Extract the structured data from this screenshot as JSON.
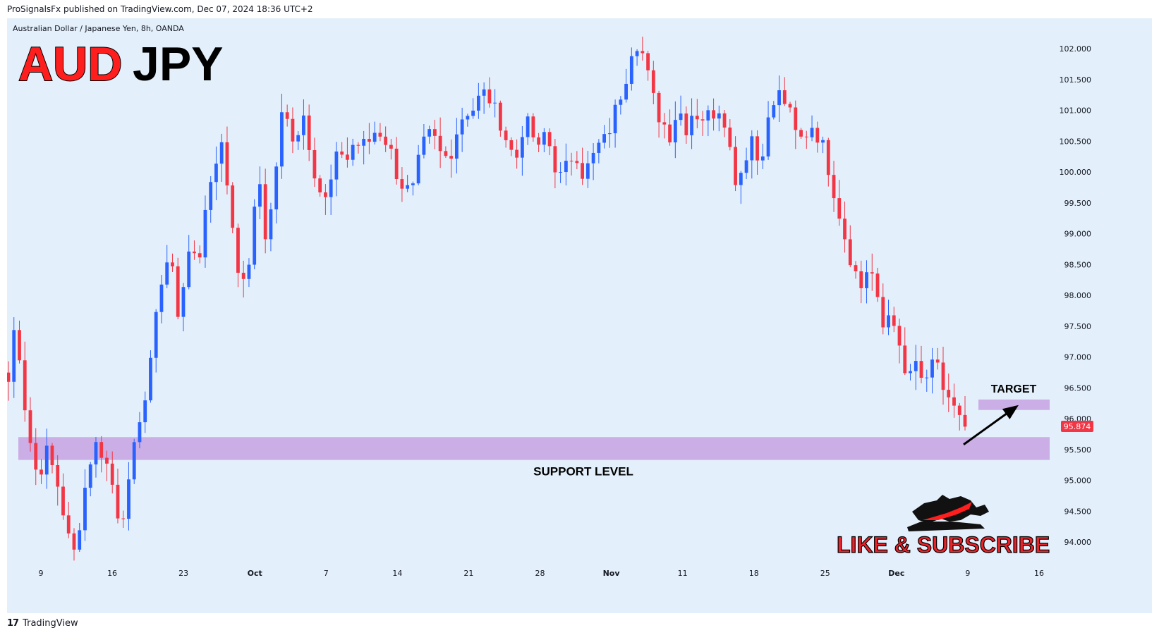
{
  "header": {
    "published_by": "ProSignalsFx published on TradingView.com, Dec 07, 2024 18:36 UTC+2"
  },
  "footer": {
    "brand": "TradingView",
    "logo_glyph": "17"
  },
  "colors": {
    "background": "#e3effa",
    "up": "#2962ff",
    "down": "#f23645",
    "zone": "#c9a6e3",
    "title_red": "#ff1e1e",
    "subscribe_red": "#e8232a"
  },
  "chart_data": {
    "type": "candlestick",
    "symbol_line": "Australian Dollar / Japanese Yen, 8h, OANDA",
    "title": "AUDJPY",
    "title_parts": [
      "AUD",
      "JPY"
    ],
    "ylim": [
      93.5,
      102.5
    ],
    "y_ticks": [
      "102.000",
      "101.500",
      "101.000",
      "100.500",
      "100.000",
      "99.500",
      "99.000",
      "98.500",
      "98.000",
      "97.500",
      "97.000",
      "96.500",
      "96.000",
      "95.500",
      "95.000",
      "94.500",
      "94.000"
    ],
    "x_ticks": [
      "9",
      "16",
      "23",
      "Oct",
      "7",
      "14",
      "21",
      "28",
      "Nov",
      "11",
      "18",
      "25",
      "Dec",
      "9",
      "16"
    ],
    "last_price": "95.874",
    "annotations": {
      "support_label": "SUPPORT LEVEL",
      "support_zone": [
        95.33,
        95.7
      ],
      "target_label": "TARGET",
      "target_zone": [
        96.14,
        96.31
      ],
      "arrow_from_price": 95.58,
      "arrow_to_price": 96.22
    },
    "branding": {
      "cta": "LIKE & SUBSCRIBE"
    },
    "key_points": [
      96.6,
      97.7,
      96.4,
      95.6,
      95.0,
      95.5,
      95.2,
      94.8,
      94.1,
      93.8,
      94.6,
      95.3,
      95.6,
      95.4,
      95.0,
      94.4,
      94.6,
      95.4,
      96.2,
      96.4,
      97.8,
      98.3,
      98.7,
      97.7,
      98.4,
      98.7,
      98.7,
      99.6,
      100.2,
      100.4,
      99.6,
      98.6,
      98.1,
      98.8,
      100.0,
      98.9,
      99.6,
      100.9,
      100.8,
      100.5,
      101.0,
      100.4,
      99.8,
      99.5,
      99.9,
      100.4,
      100.2,
      100.5,
      100.4,
      100.5,
      100.7,
      100.6,
      100.3,
      99.9,
      99.7,
      99.7,
      100.3,
      100.6,
      100.5,
      100.2,
      100.3,
      100.7,
      101.0,
      101.0,
      101.2,
      101.3,
      101.0,
      100.8,
      100.4,
      100.2,
      100.8,
      100.7,
      100.3,
      100.7,
      100.2,
      99.9,
      100.1,
      100.4,
      100.0,
      100.1,
      100.4,
      100.5,
      100.8,
      101.2,
      101.6,
      102.2,
      102.0,
      101.5,
      101.0,
      100.8,
      100.6,
      101.1,
      100.7,
      101.0,
      100.9,
      100.9,
      101.0,
      101.1,
      100.4,
      99.8,
      100.2,
      100.6,
      100.1,
      100.7,
      101.1,
      101.3,
      101.0,
      100.6,
      100.5,
      100.8,
      100.6,
      100.3,
      99.8,
      99.3,
      98.8,
      98.4,
      98.1,
      98.6,
      97.9,
      97.4,
      97.9,
      97.1,
      96.6,
      96.9,
      96.6,
      96.7,
      96.9,
      96.5,
      96.3,
      96.0,
      95.87
    ]
  }
}
